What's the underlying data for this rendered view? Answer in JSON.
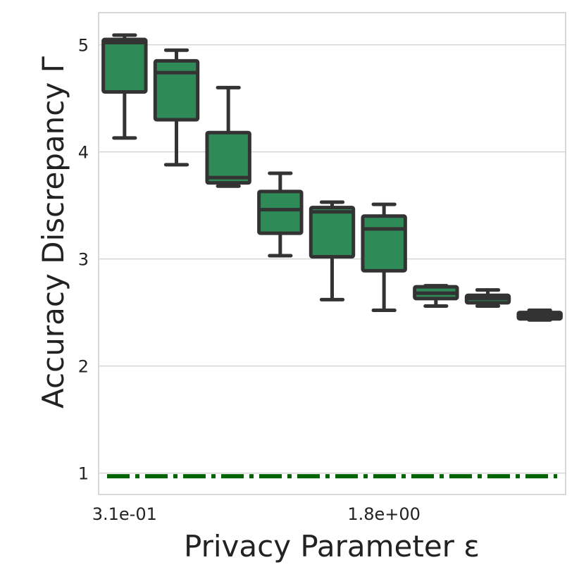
{
  "chart_data": {
    "type": "boxplot",
    "title": "",
    "xlabel": "Privacy Parameter ε",
    "ylabel": "Accuracy Discrepancy Γ",
    "x_tick_labels": [
      "3.1e-01",
      "1.8e+00"
    ],
    "x_tick_positions": [
      0,
      5
    ],
    "ylim": [
      0.8,
      5.3
    ],
    "yticks": [
      1,
      2,
      3,
      4,
      5
    ],
    "grid": true,
    "box_color": "#2e8b57",
    "edge_color": "#333333",
    "reference_line": {
      "y": 0.97,
      "style": "dashdot",
      "color": "#006400"
    },
    "boxes": [
      {
        "whislo": 4.13,
        "q1": 4.56,
        "med": 5.02,
        "q3": 5.05,
        "whishi": 5.09
      },
      {
        "whislo": 3.88,
        "q1": 4.3,
        "med": 4.74,
        "q3": 4.85,
        "whishi": 4.95
      },
      {
        "whislo": 3.68,
        "q1": 3.71,
        "med": 3.76,
        "q3": 4.18,
        "whishi": 4.6
      },
      {
        "whislo": 3.03,
        "q1": 3.24,
        "med": 3.46,
        "q3": 3.63,
        "whishi": 3.8
      },
      {
        "whislo": 2.62,
        "q1": 3.02,
        "med": 3.44,
        "q3": 3.48,
        "whishi": 3.53
      },
      {
        "whislo": 2.52,
        "q1": 2.89,
        "med": 3.28,
        "q3": 3.4,
        "whishi": 3.51
      },
      {
        "whislo": 2.56,
        "q1": 2.63,
        "med": 2.68,
        "q3": 2.74,
        "whishi": 2.75
      },
      {
        "whislo": 2.56,
        "q1": 2.59,
        "med": 2.63,
        "q3": 2.66,
        "whishi": 2.71
      },
      {
        "whislo": 2.43,
        "q1": 2.44,
        "med": 2.47,
        "q3": 2.5,
        "whishi": 2.52
      }
    ]
  }
}
